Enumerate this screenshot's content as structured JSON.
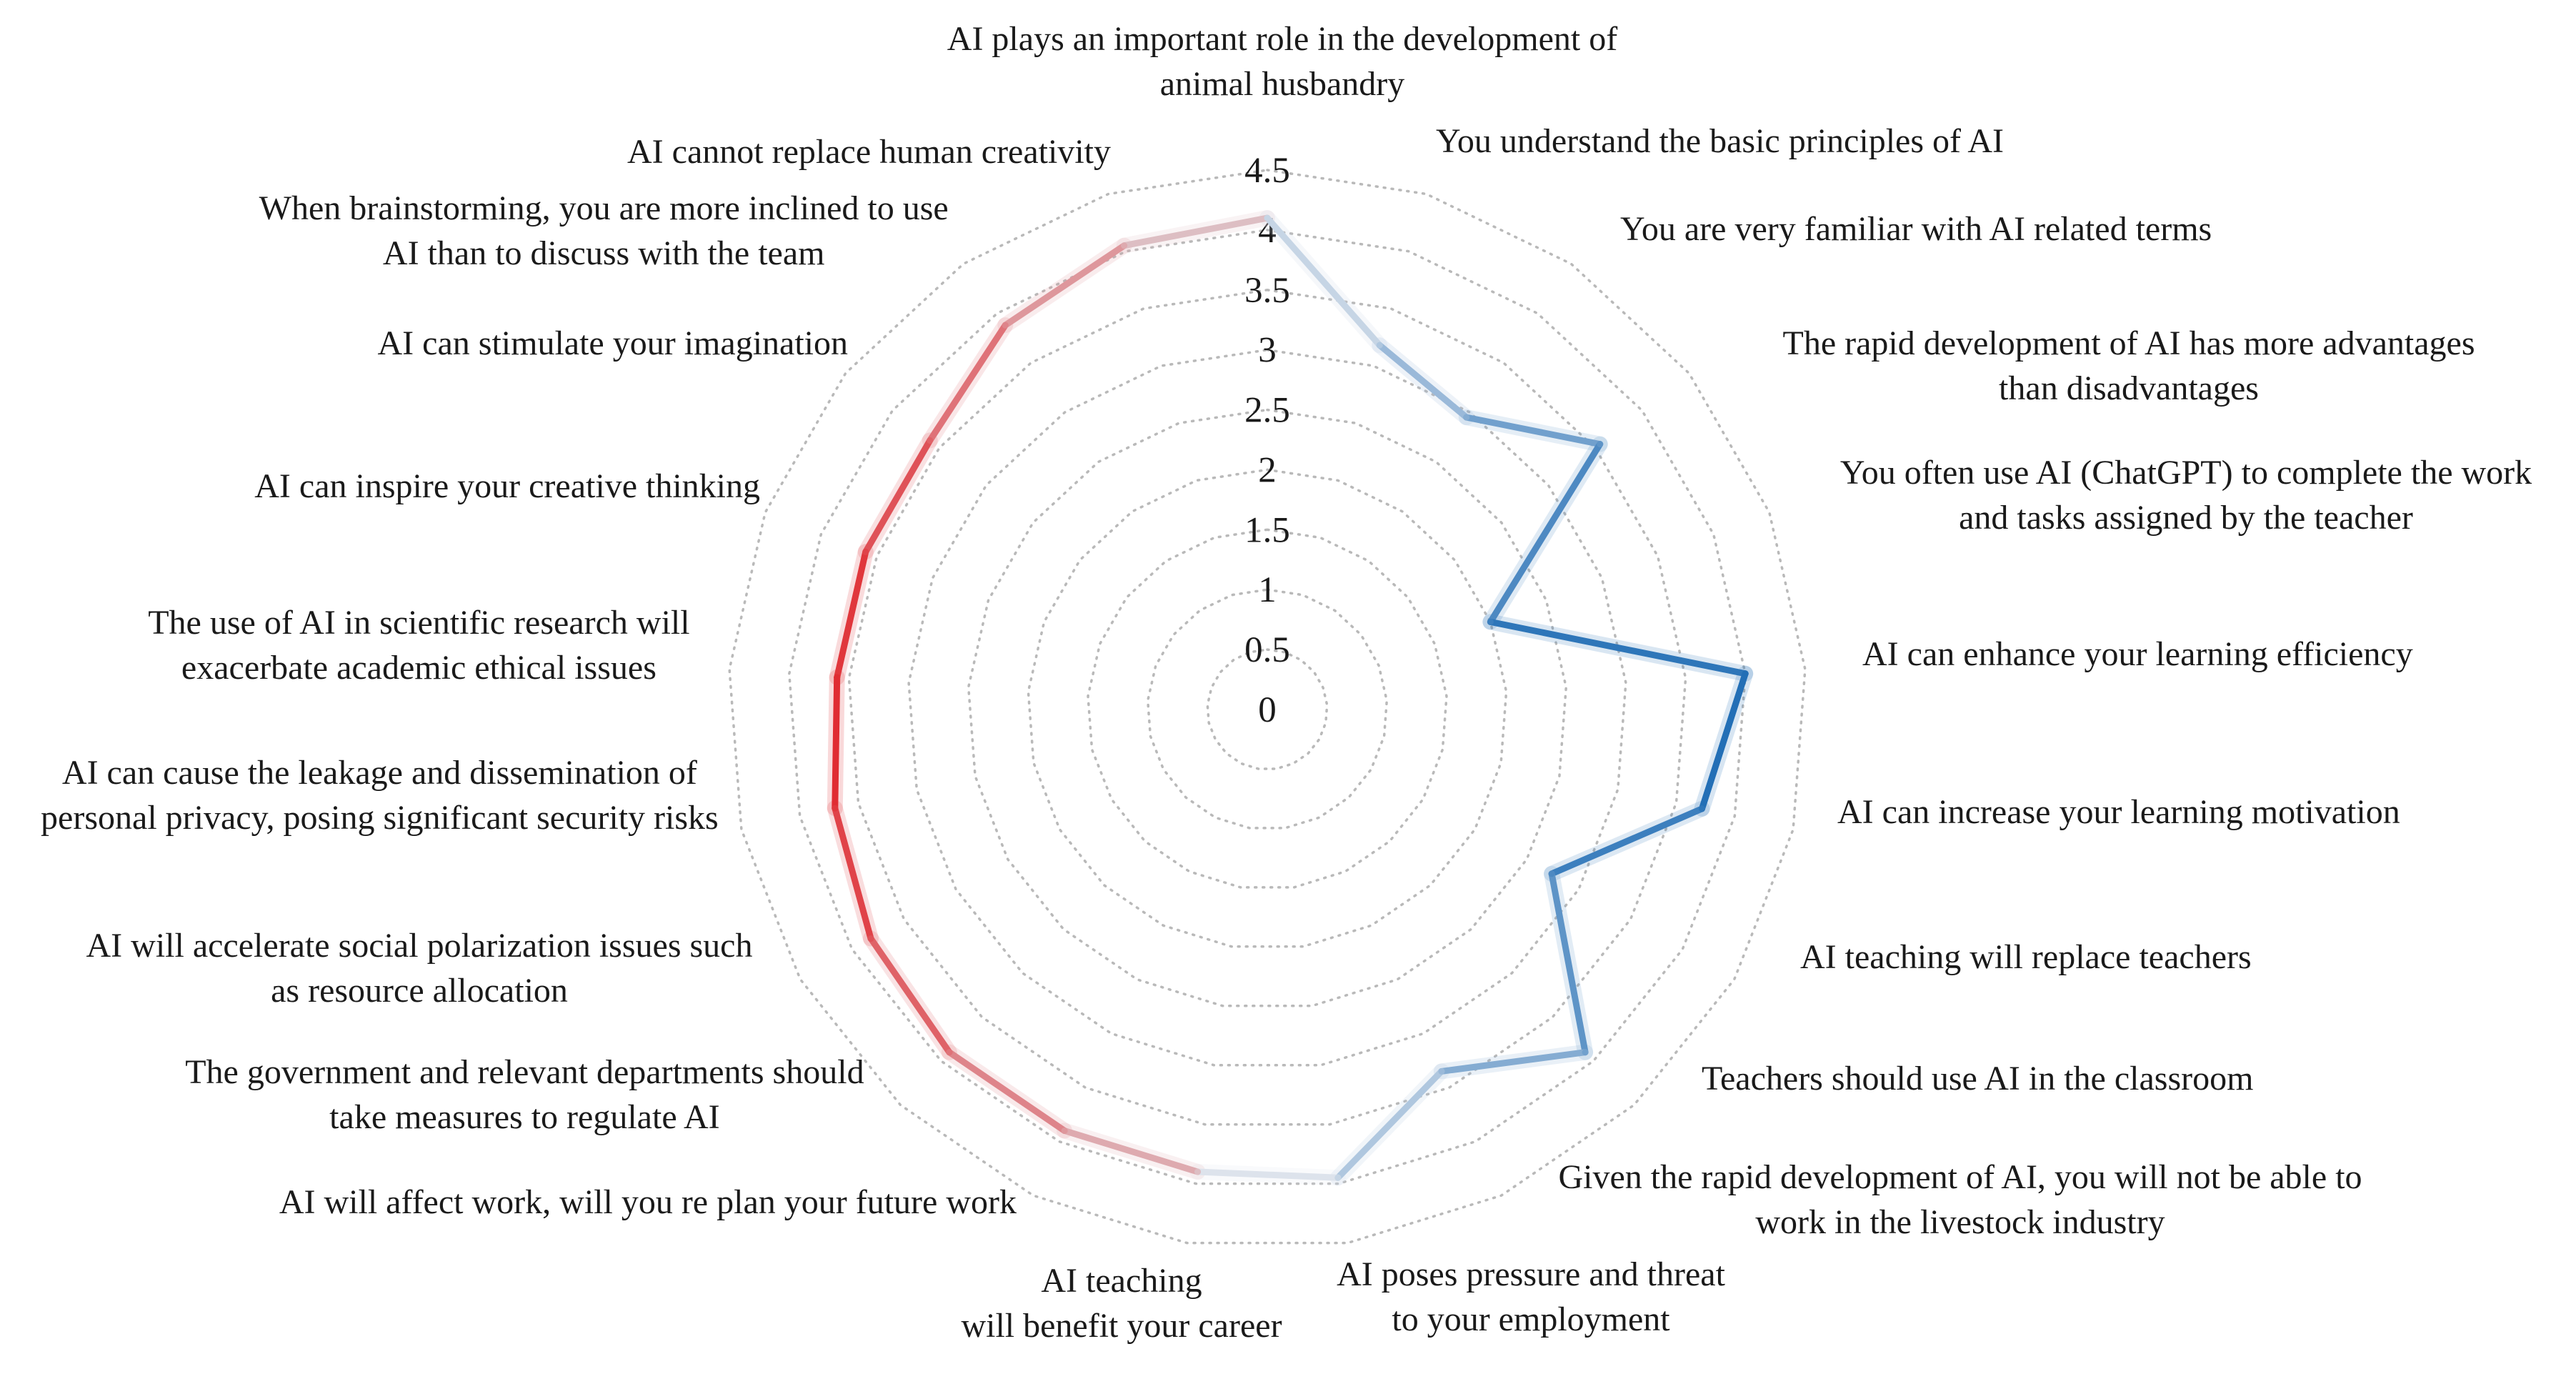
{
  "chart_data": {
    "type": "radar",
    "title": "",
    "rmin": 0,
    "rmax": 4.5,
    "ticks": [
      "0",
      "0.5",
      "1",
      "1.5",
      "2",
      "2.5",
      "3",
      "3.5",
      "4",
      "4.5"
    ],
    "grid": true,
    "categories": [
      [
        "AI plays an important role in the development of",
        "animal husbandry"
      ],
      [
        "You understand the basic principles of AI"
      ],
      [
        "You are very familiar with AI related terms"
      ],
      [
        "The rapid development of AI has more advantages",
        "than disadvantages"
      ],
      [
        "You often use AI (ChatGPT) to complete the work",
        "and tasks assigned by the teacher"
      ],
      [
        "AI can enhance your learning efficiency"
      ],
      [
        "AI can increase your learning motivation"
      ],
      [
        "AI teaching will replace teachers"
      ],
      [
        "Teachers should use AI in the classroom"
      ],
      [
        "Given the rapid development of AI, you will not be able to",
        "work in the livestock industry"
      ],
      [
        "AI poses pressure and threat",
        "to your employment"
      ],
      [
        "AI teaching",
        "will benefit your career"
      ],
      [
        "AI will affect work, will you re plan your future work"
      ],
      [
        "The government and relevant departments should",
        "take measures to regulate AI"
      ],
      [
        "AI will accelerate social polarization issues such",
        "as resource allocation"
      ],
      [
        "AI can cause the leakage and dissemination of",
        "personal privacy, posing significant security risks"
      ],
      [
        "The use of AI in scientific research will",
        "exacerbate academic ethical issues"
      ],
      [
        "AI can inspire your creative thinking"
      ],
      [
        "AI can stimulate your imagination"
      ],
      [
        "When brainstorming, you are more inclined to use",
        "AI than to discuss with the team"
      ],
      [
        "AI cannot replace human creativity"
      ]
    ],
    "values": [
      4.1,
      3.18,
      2.95,
      3.55,
      2.0,
      4.0,
      3.72,
      2.74,
      3.9,
      3.35,
      3.95,
      3.9,
      3.9,
      3.9,
      3.82,
      3.7,
      3.6,
      3.6,
      3.6,
      3.88,
      4.05
    ],
    "colors": {
      "blue_dark": "#1f6db5",
      "blue_light": "#dde3ec",
      "red_dark": "#e0292f",
      "red_light": "#ddd3d8",
      "grid": "#b9b9b9"
    }
  }
}
